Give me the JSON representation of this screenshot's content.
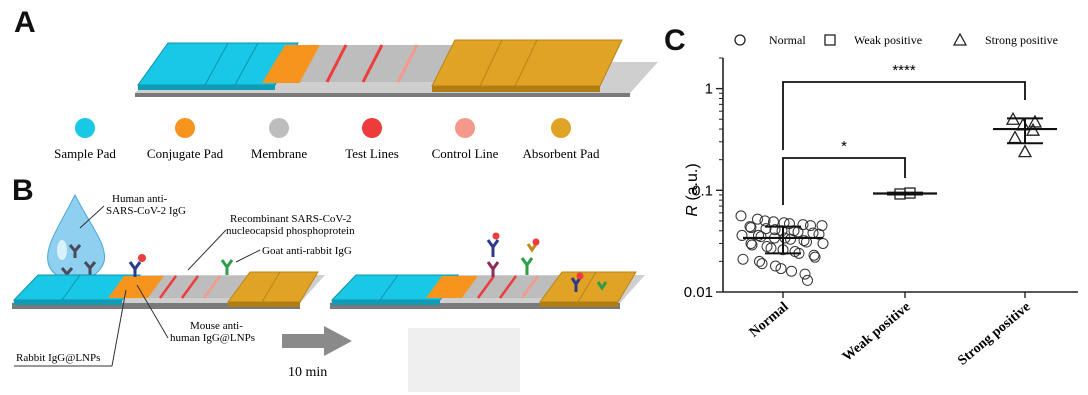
{
  "panels": {
    "a": "A",
    "b": "B",
    "c": "C"
  },
  "colors": {
    "sample_pad": "#19c7e6",
    "conjugate_pad": "#f7941d",
    "membrane": "#bdbdbd",
    "test_line": "#ee3b3b",
    "control_line": "#f59a8a",
    "absorbent_pad": "#e0a326"
  },
  "legend_a": [
    {
      "label": "Sample Pad",
      "color": "#19c7e6"
    },
    {
      "label": "Conjugate Pad",
      "color": "#f7941d"
    },
    {
      "label": "Membrane",
      "color": "#bdbdbd"
    },
    {
      "label": "Test Lines",
      "color": "#ee3b3b"
    },
    {
      "label": "Control Line",
      "color": "#f59a8a"
    },
    {
      "label": "Absorbent Pad",
      "color": "#e0a326"
    }
  ],
  "labels_b": {
    "human_igg_1": "Human anti-",
    "human_igg_2": "SARS-CoV-2 IgG",
    "recombinant_1": "Recombinant SARS-CoV-2",
    "recombinant_2": "nucleocapsid phosphoprotein",
    "goat": "Goat anti-rabbit IgG",
    "mouse_1": "Mouse anti-",
    "mouse_2": "human IgG@LNPs",
    "rabbit": "Rabbit IgG@LNPs",
    "time": "10 min"
  },
  "chart_data": {
    "type": "scatter",
    "ylabel_italic": "R",
    "ylabel_unit": " (a.u.)",
    "yscale": "log",
    "ylim": [
      0.01,
      2
    ],
    "yticks": [
      "0.01",
      "0.1",
      "1"
    ],
    "categories": [
      "Normal",
      "Weak positive",
      "Strong positive"
    ],
    "legend": [
      {
        "label": "Normal",
        "marker": "circle"
      },
      {
        "label": "Weak positive",
        "marker": "square"
      },
      {
        "label": "Strong positive",
        "marker": "triangle"
      }
    ],
    "legend_position": "top",
    "series": [
      {
        "marker": "circle",
        "mean": 0.034,
        "sd_low": 0.024,
        "sd_high": 0.044,
        "values": [
          0.056,
          0.052,
          0.05,
          0.049,
          0.048,
          0.047,
          0.046,
          0.045,
          0.045,
          0.044,
          0.043,
          0.042,
          0.041,
          0.04,
          0.04,
          0.039,
          0.038,
          0.037,
          0.036,
          0.036,
          0.035,
          0.034,
          0.034,
          0.033,
          0.032,
          0.031,
          0.03,
          0.03,
          0.029,
          0.028,
          0.027,
          0.026,
          0.025,
          0.024,
          0.023,
          0.022,
          0.021,
          0.02,
          0.019,
          0.018,
          0.017,
          0.016,
          0.015,
          0.013
        ]
      },
      {
        "marker": "square",
        "mean": 0.093,
        "sd_low": 0.091,
        "sd_high": 0.095,
        "values": [
          0.092,
          0.094
        ]
      },
      {
        "marker": "triangle",
        "mean": 0.4,
        "sd_low": 0.29,
        "sd_high": 0.51,
        "values": [
          0.5,
          0.47,
          0.44,
          0.39,
          0.33,
          0.24
        ]
      }
    ],
    "significance": [
      {
        "from": "Normal",
        "to": "Weak positive",
        "label": "*"
      },
      {
        "from": "Normal",
        "to": "Strong positive",
        "label": "****"
      }
    ]
  }
}
